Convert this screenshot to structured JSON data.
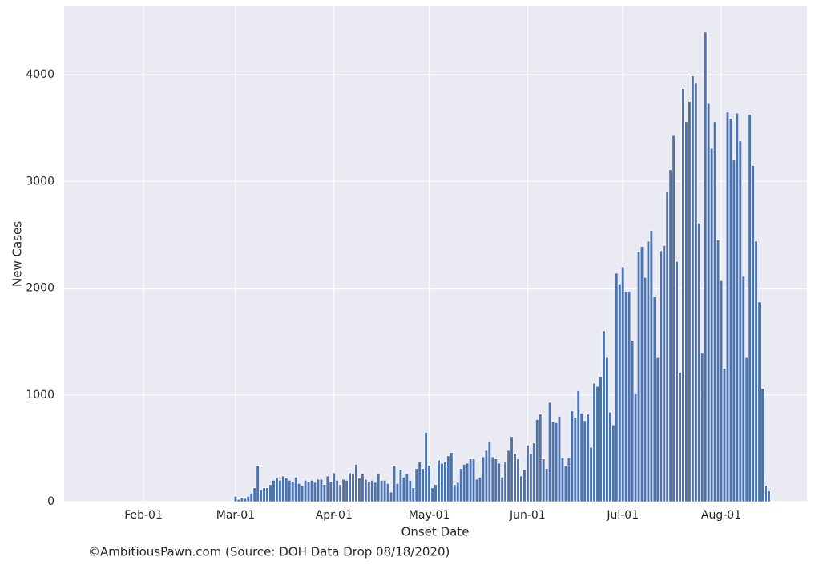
{
  "chart_data": {
    "type": "bar",
    "xlabel": "Onset Date",
    "ylabel": "New Cases",
    "footer": "©AmbitiousPawn.com (Source: DOH Data Drop 08/18/2020)",
    "color": "#4c72b0",
    "background": "#eaeaf2",
    "grid": true,
    "xlim": [
      "01-07",
      "08-28"
    ],
    "xticks": [
      {
        "value": "02-01",
        "label": "Feb-01"
      },
      {
        "value": "03-01",
        "label": "Mar-01"
      },
      {
        "value": "04-01",
        "label": "Apr-01"
      },
      {
        "value": "05-01",
        "label": "May-01"
      },
      {
        "value": "06-01",
        "label": "Jun-01"
      },
      {
        "value": "07-01",
        "label": "Jul-01"
      },
      {
        "value": "08-01",
        "label": "Aug-01"
      }
    ],
    "ylim": [
      0,
      4640
    ],
    "yticks": [
      0,
      1000,
      2000,
      3000,
      4000
    ],
    "x": [
      "03-01",
      "03-02",
      "03-03",
      "03-04",
      "03-05",
      "03-06",
      "03-07",
      "03-08",
      "03-09",
      "03-10",
      "03-11",
      "03-12",
      "03-13",
      "03-14",
      "03-15",
      "03-16",
      "03-17",
      "03-18",
      "03-19",
      "03-20",
      "03-21",
      "03-22",
      "03-23",
      "03-24",
      "03-25",
      "03-26",
      "03-27",
      "03-28",
      "03-29",
      "03-30",
      "03-31",
      "04-01",
      "04-02",
      "04-03",
      "04-04",
      "04-05",
      "04-06",
      "04-07",
      "04-08",
      "04-09",
      "04-10",
      "04-11",
      "04-12",
      "04-13",
      "04-14",
      "04-15",
      "04-16",
      "04-17",
      "04-18",
      "04-19",
      "04-20",
      "04-21",
      "04-22",
      "04-23",
      "04-24",
      "04-25",
      "04-26",
      "04-27",
      "04-28",
      "04-29",
      "04-30",
      "05-01",
      "05-02",
      "05-03",
      "05-04",
      "05-05",
      "05-06",
      "05-07",
      "05-08",
      "05-09",
      "05-10",
      "05-11",
      "05-12",
      "05-13",
      "05-14",
      "05-15",
      "05-16",
      "05-17",
      "05-18",
      "05-19",
      "05-20",
      "05-21",
      "05-22",
      "05-23",
      "05-24",
      "05-25",
      "05-26",
      "05-27",
      "05-28",
      "05-29",
      "05-30",
      "05-31",
      "06-01",
      "06-02",
      "06-03",
      "06-04",
      "06-05",
      "06-06",
      "06-07",
      "06-08",
      "06-09",
      "06-10",
      "06-11",
      "06-12",
      "06-13",
      "06-14",
      "06-15",
      "06-16",
      "06-17",
      "06-18",
      "06-19",
      "06-20",
      "06-21",
      "06-22",
      "06-23",
      "06-24",
      "06-25",
      "06-26",
      "06-27",
      "06-28",
      "06-29",
      "06-30",
      "07-01",
      "07-02",
      "07-03",
      "07-04",
      "07-05",
      "07-06",
      "07-07",
      "07-08",
      "07-09",
      "07-10",
      "07-11",
      "07-12",
      "07-13",
      "07-14",
      "07-15",
      "07-16",
      "07-17",
      "07-18",
      "07-19",
      "07-20",
      "07-21",
      "07-22",
      "07-23",
      "07-24",
      "07-25",
      "07-26",
      "07-27",
      "07-28",
      "07-29",
      "07-30",
      "07-31",
      "08-01",
      "08-02",
      "08-03",
      "08-04",
      "08-05",
      "08-06",
      "08-07",
      "08-08",
      "08-09",
      "08-10",
      "08-11",
      "08-12",
      "08-13",
      "08-14",
      "08-15",
      "08-16"
    ],
    "values": [
      50,
      20,
      40,
      30,
      50,
      80,
      130,
      340,
      110,
      130,
      130,
      160,
      200,
      220,
      200,
      240,
      220,
      200,
      190,
      230,
      170,
      150,
      200,
      190,
      200,
      180,
      210,
      210,
      160,
      240,
      190,
      270,
      200,
      160,
      210,
      200,
      270,
      260,
      350,
      220,
      260,
      210,
      190,
      200,
      180,
      260,
      200,
      200,
      170,
      90,
      340,
      170,
      300,
      230,
      260,
      200,
      130,
      310,
      370,
      310,
      650,
      340,
      130,
      160,
      390,
      360,
      370,
      430,
      460,
      160,
      180,
      310,
      350,
      360,
      400,
      400,
      210,
      230,
      420,
      480,
      560,
      420,
      400,
      360,
      230,
      370,
      480,
      610,
      450,
      400,
      240,
      300,
      530,
      450,
      550,
      770,
      820,
      400,
      310,
      930,
      750,
      740,
      800,
      410,
      340,
      410,
      850,
      790,
      1040,
      830,
      760,
      820,
      510,
      1110,
      1080,
      1170,
      1600,
      1350,
      840,
      720,
      2140,
      2040,
      2200,
      1970,
      1970,
      1510,
      1010,
      2340,
      2390,
      2100,
      2440,
      2540,
      1920,
      1350,
      2350,
      2400,
      2900,
      3110,
      3430,
      2250,
      1210,
      3870,
      3560,
      3750,
      3990,
      3920,
      2610,
      1390,
      4400,
      3730,
      3310,
      3560,
      2450,
      2070,
      1250,
      3650,
      3590,
      3200,
      3640,
      3380,
      2110,
      1350,
      3630,
      3150,
      2440,
      1870,
      1060,
      150,
      100
    ]
  }
}
